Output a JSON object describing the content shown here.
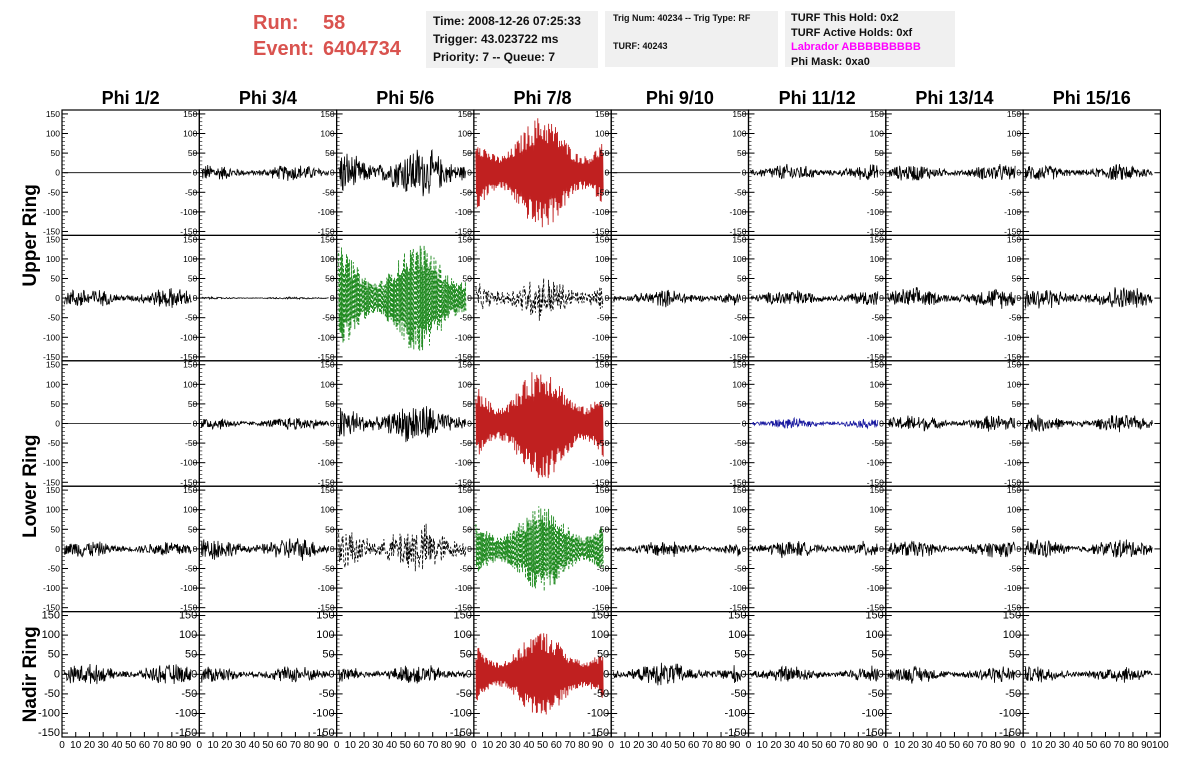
{
  "header": {
    "run_label": "Run:",
    "run_value": "58",
    "event_label": "Event:",
    "event_value": "6404734"
  },
  "info1": {
    "time": "Time: 2008-12-26 07:25:33",
    "trigger": "Trigger: 43.023722 ms",
    "priority": "Priority: 7 -- Queue: 7"
  },
  "info2": {
    "trig": "Trig Num: 40234 -- Trig Type: RF",
    "turf": "TURF: 40243"
  },
  "info3": {
    "hold": "TURF This Hold: 0x2",
    "active": "TURF Active Holds: 0xf",
    "labrador": "Labrador ABBBBBBBBB",
    "phimask": "Phi Mask: 0xa0"
  },
  "colors": {
    "header_red": "#d9534f",
    "trace_red": "#c02020",
    "trace_green": "#1f8a1f",
    "trace_blue": "#1a1aa0",
    "trace_black": "#000000",
    "labrador": "#ff00ff"
  },
  "chart_data": {
    "type": "line",
    "columns": [
      "Phi 1/2",
      "Phi 3/4",
      "Phi 5/6",
      "Phi 7/8",
      "Phi 9/10",
      "Phi 11/12",
      "Phi 13/14",
      "Phi 15/16"
    ],
    "ring_labels": [
      {
        "label": "Upper Ring",
        "rows": [
          0,
          1
        ]
      },
      {
        "label": "Lower Ring",
        "rows": [
          2,
          3
        ]
      },
      {
        "label": "Nadir Ring",
        "rows": [
          4
        ]
      }
    ],
    "ylim": [
      -160,
      160
    ],
    "xlim": [
      0,
      100
    ],
    "y_ticks": [
      -150,
      -100,
      -50,
      0,
      50,
      100,
      150
    ],
    "x_tick_labels_per_panel": [
      "0",
      "10",
      "20",
      "30",
      "40",
      "50",
      "60",
      "70",
      "80",
      "90",
      "100"
    ],
    "grid": false,
    "panels": [
      [
        {
          "amp": 0,
          "color": "black",
          "style": "solid"
        },
        {
          "amp": 25,
          "color": "black",
          "style": "solid"
        },
        {
          "amp": 75,
          "color": "black",
          "style": "solid"
        },
        {
          "amp": 145,
          "color": "red",
          "style": "solid"
        },
        {
          "amp": 0,
          "color": "black",
          "style": "solid"
        },
        {
          "amp": 25,
          "color": "black",
          "style": "solid"
        },
        {
          "amp": 25,
          "color": "black",
          "style": "solid"
        },
        {
          "amp": 25,
          "color": "black",
          "style": "solid"
        }
      ],
      [
        {
          "amp": 30,
          "color": "black",
          "style": "solid"
        },
        {
          "amp": 3,
          "color": "black",
          "style": "solid"
        },
        {
          "amp": 140,
          "color": "green",
          "style": "dashed"
        },
        {
          "amp": 65,
          "color": "black",
          "style": "dashed"
        },
        {
          "amp": 25,
          "color": "black",
          "style": "solid"
        },
        {
          "amp": 25,
          "color": "black",
          "style": "solid"
        },
        {
          "amp": 30,
          "color": "black",
          "style": "solid"
        },
        {
          "amp": 35,
          "color": "black",
          "style": "solid"
        }
      ],
      [
        {
          "amp": 0,
          "color": "black",
          "style": "solid"
        },
        {
          "amp": 20,
          "color": "black",
          "style": "solid"
        },
        {
          "amp": 60,
          "color": "black",
          "style": "solid"
        },
        {
          "amp": 145,
          "color": "red",
          "style": "solid"
        },
        {
          "amp": 0,
          "color": "black",
          "style": "solid"
        },
        {
          "amp": 15,
          "color": "blue",
          "style": "solid"
        },
        {
          "amp": 25,
          "color": "black",
          "style": "solid"
        },
        {
          "amp": 25,
          "color": "black",
          "style": "solid"
        }
      ],
      [
        {
          "amp": 25,
          "color": "black",
          "style": "solid"
        },
        {
          "amp": 35,
          "color": "black",
          "style": "solid"
        },
        {
          "amp": 75,
          "color": "black",
          "style": "dashed"
        },
        {
          "amp": 110,
          "color": "green",
          "style": "dashed"
        },
        {
          "amp": 25,
          "color": "black",
          "style": "solid"
        },
        {
          "amp": 25,
          "color": "black",
          "style": "solid"
        },
        {
          "amp": 25,
          "color": "black",
          "style": "solid"
        },
        {
          "amp": 30,
          "color": "black",
          "style": "solid"
        }
      ],
      [
        {
          "amp": 30,
          "color": "black",
          "style": "solid"
        },
        {
          "amp": 25,
          "color": "black",
          "style": "solid"
        },
        {
          "amp": 30,
          "color": "black",
          "style": "solid"
        },
        {
          "amp": 110,
          "color": "red",
          "style": "solid"
        },
        {
          "amp": 35,
          "color": "black",
          "style": "solid"
        },
        {
          "amp": 25,
          "color": "black",
          "style": "solid"
        },
        {
          "amp": 25,
          "color": "black",
          "style": "solid"
        },
        {
          "amp": 25,
          "color": "black",
          "style": "solid"
        }
      ]
    ]
  }
}
